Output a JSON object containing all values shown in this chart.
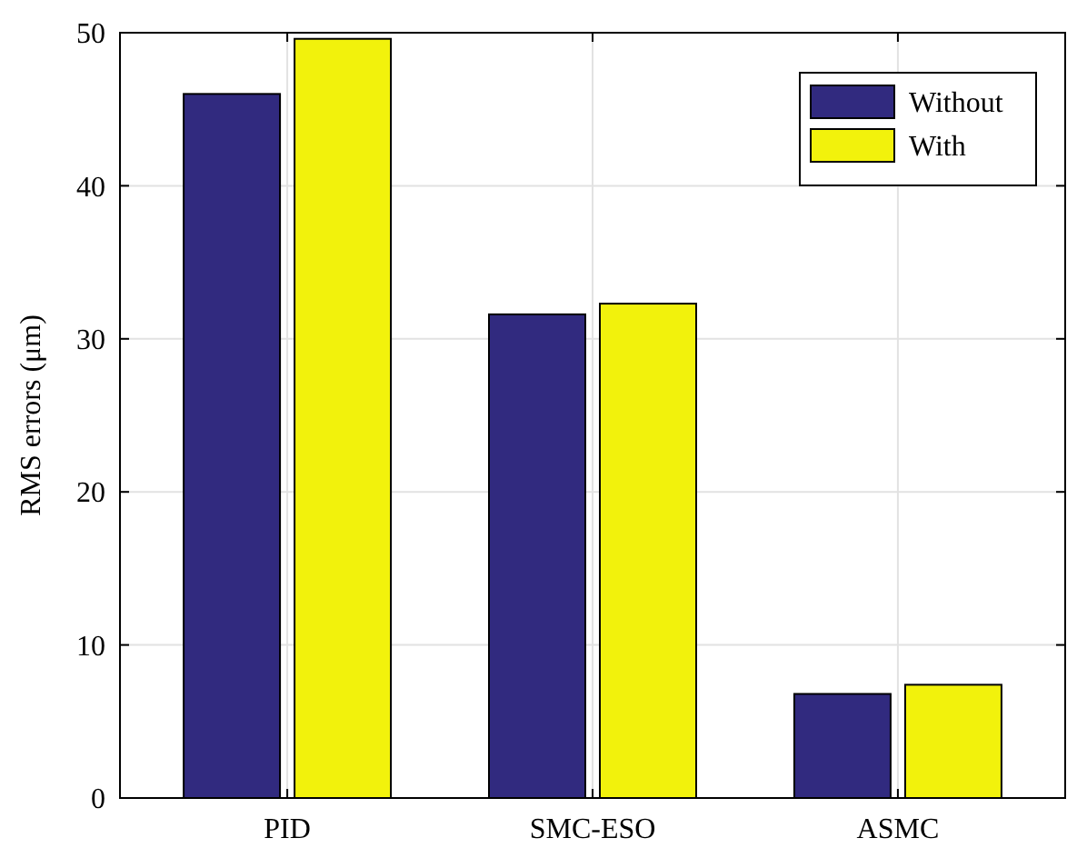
{
  "chart_data": {
    "type": "bar",
    "ylabel": "RMS errors (μm)",
    "categories": [
      "PID",
      "SMC-ESO",
      "ASMC"
    ],
    "series": [
      {
        "name": "Without",
        "color": "#312a7f",
        "values": [
          46,
          31.6,
          6.8
        ]
      },
      {
        "name": "With",
        "color": "#f2f20c",
        "values": [
          49.6,
          32.3,
          7.4
        ]
      }
    ],
    "ylim": [
      0,
      50
    ],
    "yticks": [
      0,
      10,
      20,
      30,
      40,
      50
    ],
    "grid": true,
    "legend": "top right"
  }
}
